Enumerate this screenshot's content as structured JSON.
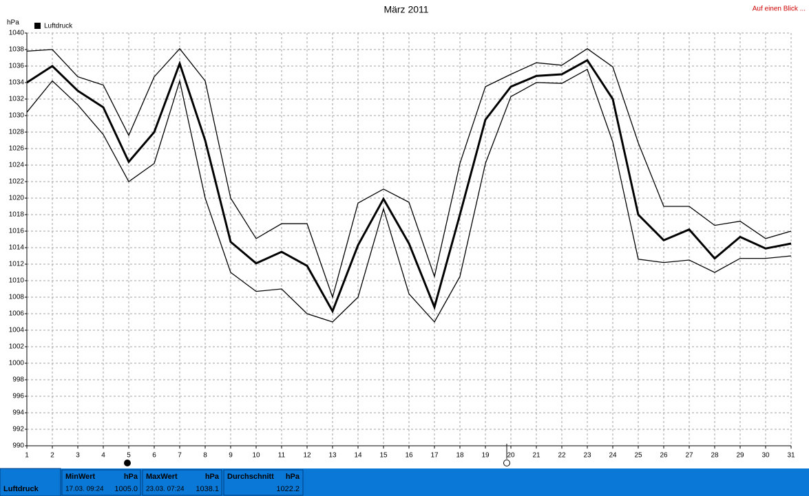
{
  "chart_data": {
    "type": "line",
    "title": "März 2011",
    "y_label": "hPa",
    "link": "Auf einen Blick ...",
    "x": [
      1,
      2,
      3,
      4,
      5,
      6,
      7,
      8,
      9,
      10,
      11,
      12,
      13,
      14,
      15,
      16,
      17,
      18,
      19,
      20,
      21,
      22,
      23,
      24,
      25,
      26,
      27,
      28,
      29,
      30,
      31
    ],
    "xlim": [
      1,
      31
    ],
    "xticks": [
      1,
      2,
      3,
      4,
      5,
      6,
      7,
      8,
      9,
      10,
      11,
      12,
      13,
      14,
      15,
      16,
      17,
      18,
      19,
      20,
      21,
      22,
      23,
      24,
      25,
      26,
      27,
      28,
      29,
      30,
      31
    ],
    "ylim": [
      990,
      1040
    ],
    "yticks": [
      990,
      992,
      994,
      996,
      998,
      1000,
      1002,
      1004,
      1006,
      1008,
      1010,
      1012,
      1014,
      1016,
      1018,
      1020,
      1022,
      1024,
      1026,
      1028,
      1030,
      1032,
      1034,
      1036,
      1038,
      1040
    ],
    "grid": true,
    "series": [
      {
        "color": "#000000",
        "values": [
          1037.8,
          1038.0,
          1034.7,
          1033.7,
          1027.6,
          1034.7,
          1038.1,
          1034.2,
          1020.0,
          1015.1,
          1016.9,
          1016.9,
          1008.0,
          1019.4,
          1021.1,
          1019.5,
          1010.5,
          1024.2,
          1033.5,
          1035.0,
          1036.4,
          1036.1,
          1038.1,
          1035.9,
          1026.7,
          1019.0,
          1019.0,
          1016.7,
          1017.2,
          1015.1,
          1016.0
        ]
      },
      {
        "name": "Luftdruck",
        "color": "#000000",
        "values": [
          1034.0,
          1036.0,
          1033.0,
          1031.0,
          1024.4,
          1028.0,
          1036.3,
          1027.0,
          1014.7,
          1012.1,
          1013.5,
          1011.8,
          1006.3,
          1014.3,
          1019.9,
          1014.5,
          1006.8,
          1018.0,
          1029.5,
          1033.5,
          1034.8,
          1035.0,
          1036.7,
          1032.0,
          1018.0,
          1014.9,
          1016.2,
          1012.7,
          1015.3,
          1013.9,
          1014.5
        ]
      },
      {
        "color": "#000000",
        "values": [
          1030.4,
          1034.2,
          1031.3,
          1027.7,
          1022.0,
          1024.2,
          1034.2,
          1020.0,
          1011.0,
          1008.7,
          1009.0,
          1006.0,
          1005.0,
          1008.0,
          1018.7,
          1008.4,
          1005.0,
          1010.5,
          1024.2,
          1032.3,
          1034.0,
          1033.9,
          1035.6,
          1026.8,
          1012.6,
          1012.2,
          1012.5,
          1011.0,
          1012.7,
          1012.7,
          1013.0
        ]
      }
    ]
  },
  "summary": {
    "label": "Luftdruck",
    "min": {
      "title": "MinWert",
      "unit": "hPa",
      "time": "17.03.  09:24",
      "value": "1005.0"
    },
    "max": {
      "title": "MaxWert",
      "unit": "hPa",
      "time": "23.03.  07:24",
      "value": "1038.1"
    },
    "avg": {
      "title": "Durchschnitt",
      "unit": "hPa",
      "value": "1022.2"
    }
  }
}
